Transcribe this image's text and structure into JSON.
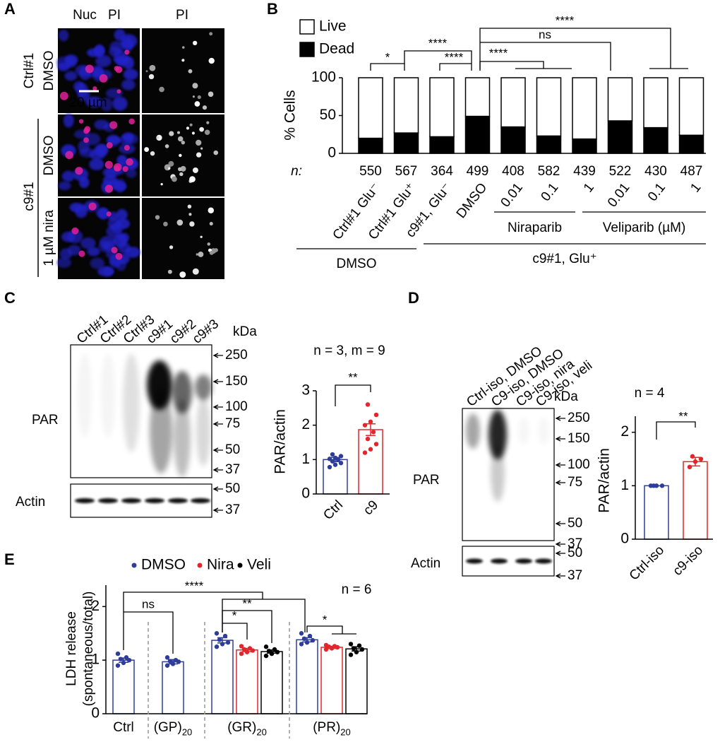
{
  "panel_a": {
    "panel": "A",
    "headers": [
      {
        "text": "Nuc",
        "color": "#2b2bb8"
      },
      {
        "text": "PI",
        "color": "#e8202a"
      },
      {
        "text": "PI",
        "color": "#000000"
      }
    ],
    "groups": [
      {
        "label": "Ctrl#1",
        "rows": [
          "DMSO"
        ]
      },
      {
        "label": "c9#1",
        "rows": [
          "DMSO",
          "1 µM nira"
        ]
      }
    ],
    "scale_bar": "20 µm"
  },
  "blot_c": {
    "panel": "C",
    "lanes": [
      "Ctrl#1",
      "Ctrl#2",
      "Ctrl#3",
      "c9#1",
      "c9#2",
      "c9#3"
    ],
    "unit": "kDa",
    "markers": [
      250,
      150,
      100,
      75,
      50,
      37
    ],
    "actin_markers": [
      50,
      37
    ],
    "rows": [
      "PAR",
      "Actin"
    ]
  },
  "blot_d": {
    "panel": "D",
    "lanes": [
      "Ctrl-iso, DMSO",
      "C9-iso, DMSO",
      "C9-iso, nira",
      "C9-iso, veli"
    ],
    "unit": "kDa",
    "markers": [
      250,
      150,
      100,
      75,
      50,
      37
    ],
    "actin_markers": [
      50,
      37
    ],
    "rows": [
      "PAR",
      "Actin"
    ]
  },
  "chart_data": [
    {
      "type": "bar",
      "panel": "B",
      "stacked": true,
      "ylabel": "% Cells",
      "categories": [
        "Ctrl#1 Glu⁻",
        "Ctrl#1 Glu⁺",
        "c9#1, Glu⁻",
        "DMSO",
        "0.01",
        "0.1",
        "1",
        "0.01",
        "0.1",
        "1"
      ],
      "series": [
        {
          "name": "Live",
          "color": "#ffffff",
          "values": [
            80,
            73,
            78,
            51,
            65,
            77,
            81,
            57,
            66,
            76
          ]
        },
        {
          "name": "Dead",
          "color": "#000000",
          "values": [
            20,
            27,
            22,
            49,
            35,
            23,
            19,
            43,
            34,
            24
          ]
        }
      ],
      "ylim": [
        0,
        100
      ],
      "yticks": [
        0,
        50,
        100
      ],
      "n_label": "n:",
      "counts": [
        550,
        567,
        364,
        499,
        408,
        582,
        439,
        522,
        430,
        487
      ],
      "group_labels": [
        "Niraparib",
        "Veliparib (µM)",
        "DMSO",
        "c9#1, Glu⁺"
      ],
      "significance": [
        "*",
        "****",
        "****",
        "****",
        "ns",
        "****"
      ]
    },
    {
      "type": "bar",
      "ylabel": "PAR/actin",
      "annotation": "n = 3, m = 9",
      "categories": [
        "Ctrl",
        "c9"
      ],
      "colors": [
        "#2e3d98",
        "#e3262b"
      ],
      "values": [
        1.0,
        1.87
      ],
      "errors": [
        0.06,
        0.17
      ],
      "points": [
        [
          0.78,
          0.85,
          0.9,
          0.95,
          1.0,
          1.02,
          1.05,
          1.1,
          1.15
        ],
        [
          1.2,
          1.3,
          1.45,
          1.6,
          1.8,
          2.0,
          2.1,
          2.3,
          2.6
        ]
      ],
      "ylim": [
        0,
        3
      ],
      "yticks": [
        0,
        1,
        2,
        3
      ],
      "significance": [
        "**"
      ]
    },
    {
      "type": "bar",
      "ylabel": "PAR/actin",
      "annotation": "n = 4",
      "categories": [
        "Ctrl-iso",
        "c9-iso"
      ],
      "colors": [
        "#2e3d98",
        "#e3262b"
      ],
      "values": [
        1.0,
        1.45
      ],
      "errors": [
        0,
        0.08
      ],
      "points": [
        [
          1.0,
          1.0,
          1.0,
          1.0
        ],
        [
          1.35,
          1.45,
          1.5,
          1.55
        ]
      ],
      "ylim": [
        0,
        2.3
      ],
      "yticks": [
        0,
        1,
        2
      ],
      "significance": [
        "**"
      ]
    },
    {
      "type": "bar",
      "panel": "E",
      "ylabel": [
        "LDH release",
        "(spontaneous/total)"
      ],
      "annotation": "n = 6",
      "categories": [
        "Ctrl",
        "(GP)",
        "(GR)",
        "(PR)"
      ],
      "category_subscripts": [
        null,
        "20",
        "20",
        "20"
      ],
      "series": [
        {
          "name": "DMSO",
          "color": "#2e3d98",
          "values": [
            1.0,
            0.97,
            1.37,
            1.38
          ],
          "errors": [
            0.04,
            0.04,
            0.05,
            0.04
          ],
          "points": [
            [
              0.9,
              0.95,
              1.0,
              1.02,
              1.05,
              1.12
            ],
            [
              0.9,
              0.93,
              0.97,
              0.98,
              1.0,
              1.05
            ],
            [
              1.25,
              1.3,
              1.33,
              1.38,
              1.45,
              1.5
            ],
            [
              1.3,
              1.33,
              1.37,
              1.4,
              1.45,
              1.5
            ]
          ]
        },
        {
          "name": "Nira",
          "color": "#e3262b",
          "values": [
            null,
            null,
            1.19,
            1.24
          ],
          "errors": [
            null,
            null,
            0.03,
            0.02
          ],
          "points": [
            null,
            null,
            [
              1.12,
              1.15,
              1.18,
              1.2,
              1.22,
              1.26
            ],
            [
              1.2,
              1.22,
              1.24,
              1.25,
              1.26,
              1.28
            ]
          ]
        },
        {
          "name": "Veli",
          "color": "#000000",
          "values": [
            null,
            null,
            1.16,
            1.21
          ],
          "errors": [
            null,
            null,
            0.03,
            0.04
          ],
          "points": [
            null,
            null,
            [
              1.08,
              1.12,
              1.15,
              1.17,
              1.2,
              1.25
            ],
            [
              1.1,
              1.15,
              1.2,
              1.22,
              1.27,
              1.3
            ]
          ]
        }
      ],
      "ylim": [
        0,
        2.4
      ],
      "yticks": [
        0,
        1,
        2
      ],
      "significance": [
        "ns",
        "****",
        "**",
        "*",
        "*"
      ]
    }
  ]
}
